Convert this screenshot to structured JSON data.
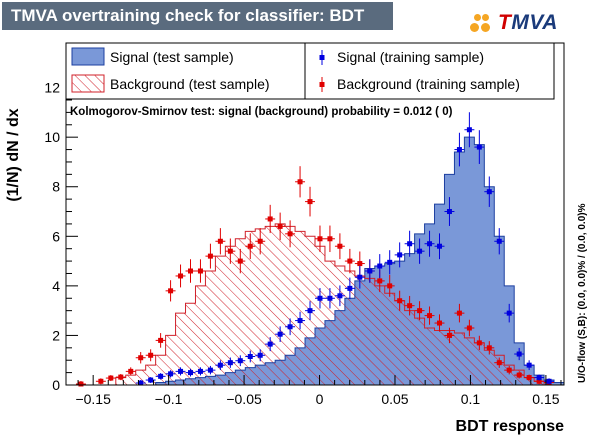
{
  "title": "TMVA overtraining check for classifier: BDT",
  "logo": {
    "text_red": "T",
    "text_blue": "MVA"
  },
  "ks_text": "Kolmogorov-Smirnov test: signal (background) probability = 0.012 (    0)",
  "side_label": "U/O-flow (S,B): (0.0, 0.0)% / (0.0, 0.0)%",
  "legend": {
    "signal_test": "Signal (test sample)",
    "background_test": "Background (test sample)",
    "signal_train": "Signal (training sample)",
    "background_train": "Background (training sample)"
  },
  "colors": {
    "signal_fill": "#7a98d8",
    "signal_line": "#1c3fa0",
    "background_line": "#d0202a",
    "signal_marker": "#0000e0",
    "background_marker": "#e00000"
  },
  "chart_data": {
    "type": "bar",
    "xlabel": "BDT response",
    "ylabel": "(1/N) dN / dx",
    "xlim": [
      -0.168,
      0.162
    ],
    "ylim": [
      0,
      13.8
    ],
    "x_ticks": [
      -0.15,
      -0.1,
      -0.05,
      0,
      0.05,
      0.1,
      0.15
    ],
    "x_tick_labels": [
      "−0.15",
      "−0.1",
      "−0.05",
      "0",
      "0.05",
      "0.1",
      "0.15"
    ],
    "y_ticks": [
      0,
      2,
      4,
      6,
      8,
      10,
      12
    ],
    "y_tick_labels": [
      "0",
      "2",
      "4",
      "6",
      "8",
      "10",
      "12"
    ],
    "grid": false,
    "bin_edges": [
      -0.168,
      -0.1614,
      -0.1548,
      -0.1482,
      -0.1416,
      -0.135,
      -0.1284,
      -0.1218,
      -0.1152,
      -0.1086,
      -0.102,
      -0.0954,
      -0.0888,
      -0.0822,
      -0.0756,
      -0.069,
      -0.0624,
      -0.0558,
      -0.0492,
      -0.0426,
      -0.036,
      -0.0294,
      -0.0228,
      -0.0162,
      -0.0096,
      -0.003,
      0.0036,
      0.0102,
      0.0168,
      0.0234,
      0.03,
      0.0366,
      0.0432,
      0.0498,
      0.0564,
      0.063,
      0.0696,
      0.0762,
      0.0828,
      0.0894,
      0.096,
      0.1026,
      0.1092,
      0.1158,
      0.1224,
      0.129,
      0.1356,
      0.1422,
      0.1488,
      0.1554,
      0.162
    ],
    "series": [
      {
        "name": "Signal (test sample)",
        "style": "filled-histogram",
        "values": [
          0,
          0,
          0,
          0,
          0,
          0,
          0,
          0,
          0,
          0.1,
          0.15,
          0.2,
          0.25,
          0.3,
          0.35,
          0.4,
          0.5,
          0.6,
          0.7,
          0.8,
          0.9,
          1.0,
          1.2,
          1.5,
          1.9,
          2.3,
          2.6,
          3.0,
          3.5,
          4.2,
          4.7,
          4.8,
          4.9,
          5.0,
          5.3,
          6.1,
          6.5,
          7.3,
          8.5,
          9.4,
          10.0,
          9.7,
          8.0,
          6.0,
          4.0,
          1.7,
          0.8,
          0.4,
          0.2,
          0.1
        ]
      },
      {
        "name": "Background (test sample)",
        "style": "hatched-histogram",
        "values": [
          0,
          0,
          0,
          0,
          0,
          0.3,
          0.4,
          0.6,
          0.8,
          1.2,
          2.0,
          2.9,
          3.3,
          4.0,
          4.6,
          5.2,
          5.6,
          5.9,
          6.2,
          6.3,
          6.4,
          6.5,
          6.4,
          6.2,
          6.0,
          5.6,
          5.0,
          4.8,
          4.6,
          4.4,
          4.3,
          4.0,
          3.7,
          3.4,
          3.0,
          2.7,
          2.3,
          2.2,
          2.2,
          2.1,
          1.9,
          1.7,
          1.4,
          1.2,
          0.8,
          0.6,
          0.3,
          0.15,
          0,
          0
        ]
      },
      {
        "name": "Signal (training sample)",
        "style": "markers",
        "points": [
          {
            "x": -0.1185,
            "y": 0.08
          },
          {
            "x": -0.1119,
            "y": 0.2
          },
          {
            "x": -0.1053,
            "y": 0.35
          },
          {
            "x": -0.0987,
            "y": 0.45
          },
          {
            "x": -0.0921,
            "y": 0.55
          },
          {
            "x": -0.0855,
            "y": 0.5
          },
          {
            "x": -0.0789,
            "y": 0.55
          },
          {
            "x": -0.0723,
            "y": 0.6
          },
          {
            "x": -0.0657,
            "y": 0.8
          },
          {
            "x": -0.0591,
            "y": 0.9
          },
          {
            "x": -0.0525,
            "y": 0.98
          },
          {
            "x": -0.0459,
            "y": 1.15
          },
          {
            "x": -0.0393,
            "y": 1.2
          },
          {
            "x": -0.0327,
            "y": 1.65
          },
          {
            "x": -0.0261,
            "y": 2.05
          },
          {
            "x": -0.0195,
            "y": 2.35
          },
          {
            "x": -0.0129,
            "y": 2.6
          },
          {
            "x": -0.0063,
            "y": 3.0
          },
          {
            "x": 0.0003,
            "y": 3.5
          },
          {
            "x": 0.0069,
            "y": 3.5
          },
          {
            "x": 0.0135,
            "y": 3.6
          },
          {
            "x": 0.0201,
            "y": 3.9
          },
          {
            "x": 0.0267,
            "y": 4.35
          },
          {
            "x": 0.0333,
            "y": 4.6
          },
          {
            "x": 0.0399,
            "y": 4.8
          },
          {
            "x": 0.0465,
            "y": 4.95
          },
          {
            "x": 0.0531,
            "y": 5.25
          },
          {
            "x": 0.0597,
            "y": 5.7
          },
          {
            "x": 0.0663,
            "y": 5.4
          },
          {
            "x": 0.0729,
            "y": 5.7
          },
          {
            "x": 0.0795,
            "y": 5.6
          },
          {
            "x": 0.0861,
            "y": 7.0
          },
          {
            "x": 0.0927,
            "y": 9.5
          },
          {
            "x": 0.0993,
            "y": 10.3
          },
          {
            "x": 0.1059,
            "y": 9.6
          },
          {
            "x": 0.1125,
            "y": 7.8
          },
          {
            "x": 0.1191,
            "y": 5.8
          },
          {
            "x": 0.1257,
            "y": 2.9
          },
          {
            "x": 0.1323,
            "y": 1.25
          },
          {
            "x": 0.1389,
            "y": 0.8
          },
          {
            "x": 0.1455,
            "y": 0.3
          },
          {
            "x": 0.1521,
            "y": 0.15
          }
        ]
      },
      {
        "name": "Background (training sample)",
        "style": "markers",
        "points": [
          {
            "x": -0.1581,
            "y": 0.04
          },
          {
            "x": -0.1449,
            "y": 0.15
          },
          {
            "x": -0.1383,
            "y": 0.28
          },
          {
            "x": -0.1317,
            "y": 0.32
          },
          {
            "x": -0.1251,
            "y": 0.55
          },
          {
            "x": -0.1185,
            "y": 1.1
          },
          {
            "x": -0.1119,
            "y": 1.2
          },
          {
            "x": -0.1053,
            "y": 1.8
          },
          {
            "x": -0.0987,
            "y": 3.8
          },
          {
            "x": -0.0921,
            "y": 4.4
          },
          {
            "x": -0.0855,
            "y": 4.6
          },
          {
            "x": -0.0789,
            "y": 4.6
          },
          {
            "x": -0.0723,
            "y": 5.2
          },
          {
            "x": -0.0657,
            "y": 5.8
          },
          {
            "x": -0.0591,
            "y": 5.4
          },
          {
            "x": -0.0525,
            "y": 5.0
          },
          {
            "x": -0.0459,
            "y": 5.6
          },
          {
            "x": -0.0393,
            "y": 5.8
          },
          {
            "x": -0.0327,
            "y": 6.7
          },
          {
            "x": -0.0261,
            "y": 6.4
          },
          {
            "x": -0.0195,
            "y": 6.1
          },
          {
            "x": -0.0129,
            "y": 8.2
          },
          {
            "x": -0.0063,
            "y": 7.4
          },
          {
            "x": 0.0003,
            "y": 5.9
          },
          {
            "x": 0.0069,
            "y": 5.9
          },
          {
            "x": 0.0135,
            "y": 5.6
          },
          {
            "x": 0.0201,
            "y": 5.0
          },
          {
            "x": 0.0267,
            "y": 4.9
          },
          {
            "x": 0.0333,
            "y": 4.6
          },
          {
            "x": 0.0399,
            "y": 4.2
          },
          {
            "x": 0.0465,
            "y": 4.0
          },
          {
            "x": 0.0531,
            "y": 3.4
          },
          {
            "x": 0.0597,
            "y": 3.2
          },
          {
            "x": 0.0663,
            "y": 3.0
          },
          {
            "x": 0.0729,
            "y": 2.8
          },
          {
            "x": 0.0795,
            "y": 2.5
          },
          {
            "x": 0.0861,
            "y": 2.0
          },
          {
            "x": 0.0927,
            "y": 2.9
          },
          {
            "x": 0.0993,
            "y": 2.3
          },
          {
            "x": 0.1059,
            "y": 1.7
          },
          {
            "x": 0.1125,
            "y": 1.5
          },
          {
            "x": 0.1191,
            "y": 0.9
          },
          {
            "x": 0.1257,
            "y": 0.6
          },
          {
            "x": 0.1323,
            "y": 0.4
          },
          {
            "x": 0.1389,
            "y": 0.3
          },
          {
            "x": 0.1455,
            "y": 0.15
          },
          {
            "x": 0.1521,
            "y": 0.1
          }
        ]
      }
    ]
  }
}
